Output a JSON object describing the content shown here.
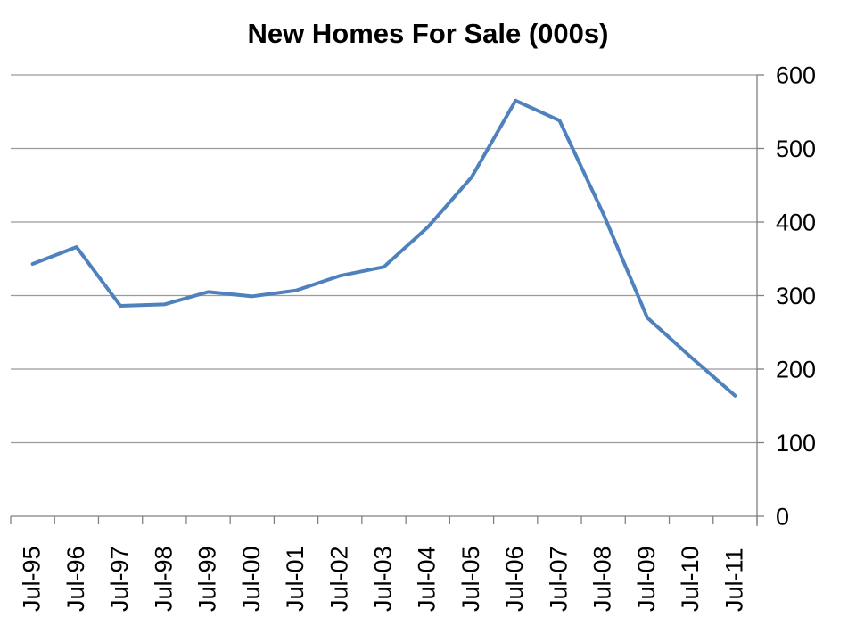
{
  "colors": {
    "series": "#4F81BD",
    "gridline": "#9B9B9B",
    "axis": "#808080",
    "text": "#000000",
    "background": "#FFFFFF"
  },
  "chart_data": {
    "type": "line",
    "title": "New Homes For Sale (000s)",
    "xlabel": "",
    "ylabel": "",
    "categories": [
      "Jul-95",
      "Jul-96",
      "Jul-97",
      "Jul-98",
      "Jul-99",
      "Jul-00",
      "Jul-01",
      "Jul-02",
      "Jul-03",
      "Jul-04",
      "Jul-05",
      "Jul-06",
      "Jul-07",
      "Jul-08",
      "Jul-09",
      "Jul-10",
      "Jul-11"
    ],
    "series": [
      {
        "name": "New Homes For Sale",
        "values": [
          343,
          366,
          286,
          288,
          305,
          299,
          307,
          327,
          339,
          393,
          461,
          565,
          538,
          411,
          270,
          216,
          164
        ]
      }
    ],
    "ylim": [
      0,
      600
    ],
    "yticks": [
      0,
      100,
      200,
      300,
      400,
      500,
      600
    ],
    "y_axis_side": "right",
    "x_tick_label_rotation_deg": 90,
    "grid": "horizontal",
    "legend": "none",
    "markers": "none"
  }
}
